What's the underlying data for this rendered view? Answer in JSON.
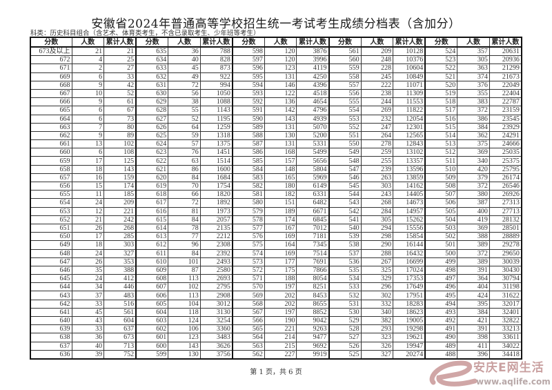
{
  "title": "安徽省2024年普通高等学校招生统一考试考生成绩分档表（含加分）",
  "subtitle": "科类：历史科目组合（含艺术、体育类考生，不含已录取考生、少年班等考生）",
  "columns": [
    "分数",
    "人数",
    "累计人数"
  ],
  "groups": [
    {
      "rows": [
        [
          "673及以上",
          21,
          21
        ],
        [
          672,
          4,
          25
        ],
        [
          671,
          2,
          27
        ],
        [
          669,
          6,
          33
        ],
        [
          668,
          9,
          42
        ],
        [
          667,
          10,
          52
        ],
        [
          666,
          9,
          61
        ],
        [
          665,
          6,
          67
        ],
        [
          664,
          6,
          73
        ],
        [
          663,
          7,
          80
        ],
        [
          662,
          9,
          89
        ],
        [
          661,
          13,
          102
        ],
        [
          660,
          6,
          108
        ],
        [
          659,
          17,
          125
        ],
        [
          658,
          18,
          143
        ],
        [
          657,
          16,
          159
        ],
        [
          656,
          15,
          174
        ],
        [
          655,
          11,
          185
        ],
        [
          654,
          24,
          209
        ],
        [
          653,
          12,
          221
        ],
        [
          652,
          21,
          242
        ],
        [
          651,
          26,
          268
        ],
        [
          650,
          17,
          285
        ],
        [
          649,
          18,
          303
        ],
        [
          648,
          24,
          327
        ],
        [
          647,
          26,
          353
        ],
        [
          646,
          35,
          388
        ],
        [
          645,
          24,
          412
        ],
        [
          644,
          34,
          446
        ],
        [
          643,
          37,
          483
        ],
        [
          642,
          33,
          516
        ],
        [
          641,
          45,
          561
        ],
        [
          640,
          43,
          604
        ],
        [
          639,
          33,
          637
        ],
        [
          638,
          36,
          673
        ],
        [
          637,
          40,
          713
        ],
        [
          636,
          39,
          752
        ]
      ]
    },
    {
      "rows": [
        [
          635,
          36,
          788
        ],
        [
          634,
          40,
          828
        ],
        [
          633,
          45,
          873
        ],
        [
          632,
          49,
          922
        ],
        [
          631,
          72,
          994
        ],
        [
          630,
          56,
          1050
        ],
        [
          629,
          38,
          1088
        ],
        [
          628,
          55,
          1143
        ],
        [
          627,
          52,
          1195
        ],
        [
          626,
          64,
          1259
        ],
        [
          625,
          59,
          1318
        ],
        [
          624,
          57,
          1375
        ],
        [
          623,
          76,
          1451
        ],
        [
          622,
          63,
          1514
        ],
        [
          621,
          86,
          1600
        ],
        [
          620,
          84,
          1684
        ],
        [
          619,
          70,
          1754
        ],
        [
          618,
          66,
          1820
        ],
        [
          617,
          72,
          1892
        ],
        [
          616,
          81,
          1973
        ],
        [
          615,
          84,
          2057
        ],
        [
          614,
          78,
          2135
        ],
        [
          613,
          77,
          2212
        ],
        [
          612,
          96,
          2308
        ],
        [
          611,
          84,
          2392
        ],
        [
          610,
          101,
          2493
        ],
        [
          609,
          87,
          2580
        ],
        [
          608,
          113,
          2693
        ],
        [
          607,
          102,
          2795
        ],
        [
          606,
          113,
          2908
        ],
        [
          605,
          104,
          3012
        ],
        [
          604,
          118,
          3130
        ],
        [
          603,
          124,
          3254
        ],
        [
          602,
          106,
          3360
        ],
        [
          601,
          123,
          3483
        ],
        [
          600,
          143,
          3626
        ],
        [
          599,
          130,
          3756
        ]
      ]
    },
    {
      "rows": [
        [
          598,
          120,
          3876
        ],
        [
          597,
          120,
          3996
        ],
        [
          596,
          123,
          4119
        ],
        [
          595,
          131,
          4250
        ],
        [
          594,
          146,
          4396
        ],
        [
          593,
          122,
          4518
        ],
        [
          592,
          136,
          4654
        ],
        [
          591,
          142,
          4796
        ],
        [
          590,
          143,
          4939
        ],
        [
          589,
          131,
          5070
        ],
        [
          588,
          130,
          5200
        ],
        [
          587,
          131,
          5331
        ],
        [
          586,
          168,
          5499
        ],
        [
          585,
          157,
          5656
        ],
        [
          584,
          148,
          5804
        ],
        [
          583,
          165,
          5969
        ],
        [
          582,
          180,
          6149
        ],
        [
          581,
          182,
          6331
        ],
        [
          580,
          151,
          6482
        ],
        [
          579,
          189,
          6671
        ],
        [
          578,
          174,
          6845
        ],
        [
          577,
          167,
          7012
        ],
        [
          576,
          169,
          7181
        ],
        [
          575,
          164,
          7345
        ],
        [
          574,
          169,
          7514
        ],
        [
          573,
          177,
          7691
        ],
        [
          572,
          175,
          7866
        ],
        [
          571,
          188,
          8054
        ],
        [
          570,
          197,
          8251
        ],
        [
          569,
          202,
          8453
        ],
        [
          568,
          202,
          8655
        ],
        [
          567,
          197,
          8852
        ],
        [
          566,
          190,
          9042
        ],
        [
          565,
          221,
          9263
        ],
        [
          564,
          214,
          9477
        ],
        [
          563,
          215,
          9692
        ],
        [
          562,
          227,
          9919
        ]
      ]
    },
    {
      "rows": [
        [
          561,
          209,
          10128
        ],
        [
          560,
          248,
          10376
        ],
        [
          559,
          228,
          10604
        ],
        [
          558,
          245,
          10849
        ],
        [
          557,
          222,
          11071
        ],
        [
          556,
          238,
          11309
        ],
        [
          555,
          244,
          11553
        ],
        [
          554,
          269,
          11822
        ],
        [
          553,
          232,
          12054
        ],
        [
          552,
          247,
          12301
        ],
        [
          551,
          264,
          12565
        ],
        [
          550,
          278,
          12843
        ],
        [
          549,
          259,
          13102
        ],
        [
          548,
          255,
          13357
        ],
        [
          547,
          239,
          13596
        ],
        [
          546,
          263,
          13859
        ],
        [
          545,
          303,
          14162
        ],
        [
          544,
          243,
          14405
        ],
        [
          543,
          268,
          14673
        ],
        [
          542,
          284,
          14957
        ],
        [
          541,
          305,
          15262
        ],
        [
          540,
          294,
          15556
        ],
        [
          539,
          298,
          15854
        ],
        [
          538,
          290,
          16144
        ],
        [
          537,
          288,
          16432
        ],
        [
          536,
          267,
          16699
        ],
        [
          535,
          325,
          17024
        ],
        [
          534,
          329,
          17353
        ],
        [
          533,
          296,
          17649
        ],
        [
          532,
          302,
          17951
        ],
        [
          531,
          332,
          18283
        ],
        [
          530,
          340,
          18623
        ],
        [
          529,
          382,
          19005
        ],
        [
          528,
          293,
          19298
        ],
        [
          527,
          323,
          19621
        ],
        [
          526,
          326,
          19947
        ],
        [
          525,
          327,
          20274
        ]
      ]
    },
    {
      "rows": [
        [
          524,
          357,
          20631
        ],
        [
          523,
          305,
          20936
        ],
        [
          522,
          363,
          21299
        ],
        [
          521,
          374,
          21673
        ],
        [
          520,
          376,
          22049
        ],
        [
          519,
          355,
          22404
        ],
        [
          518,
          383,
          22787
        ],
        [
          517,
          372,
          23159
        ],
        [
          516,
          386,
          23545
        ],
        [
          515,
          384,
          23929
        ],
        [
          514,
          362,
          24291
        ],
        [
          513,
          375,
          24666
        ],
        [
          512,
          369,
          25035
        ],
        [
          511,
          340,
          25375
        ],
        [
          510,
          420,
          25795
        ],
        [
          509,
          379,
          26174
        ],
        [
          508,
          372,
          26546
        ],
        [
          507,
          380,
          26926
        ],
        [
          506,
          387,
          27313
        ],
        [
          505,
          400,
          27713
        ],
        [
          504,
          419,
          28132
        ],
        [
          503,
          369,
          28501
        ],
        [
          502,
          388,
          28889
        ],
        [
          501,
          389,
          29278
        ],
        [
          500,
          372,
          29650
        ],
        [
          499,
          389,
          30039
        ],
        [
          498,
          391,
          30430
        ],
        [
          497,
          364,
          30794
        ],
        [
          496,
          404,
          31198
        ],
        [
          495,
          424,
          31622
        ],
        [
          494,
          395,
          32017
        ],
        [
          493,
          384,
          32401
        ],
        [
          492,
          421,
          32822
        ],
        [
          491,
          391,
          33213
        ],
        [
          490,
          398,
          33611
        ],
        [
          489,
          411,
          34022
        ],
        [
          488,
          396,
          34418
        ]
      ]
    }
  ],
  "footer": "第 1 页，共 6 页",
  "watermark": {
    "text": "安庆E网生活",
    "url": "www.aqlife.com",
    "color": "#c9a0a0"
  }
}
